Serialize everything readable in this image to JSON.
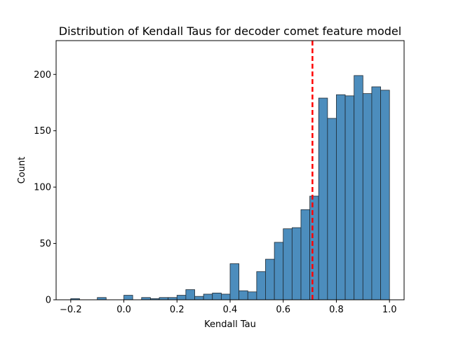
{
  "chart_data": {
    "type": "bar",
    "title": "Distribution of Kendall Taus for decoder comet feature model",
    "xlabel": "Kendall Tau",
    "ylabel": "Count",
    "xlim": [
      -0.255,
      1.055
    ],
    "ylim": [
      0,
      230
    ],
    "grid": false,
    "legend": "none",
    "bar_color": "#4c8dbd",
    "bar_edge_color": "#1f2a33",
    "reference_line": {
      "x": 0.71,
      "color": "#ff0000",
      "style": "dashed"
    },
    "x_ticks": [
      "−0.2",
      "0.0",
      "0.2",
      "0.4",
      "0.6",
      "0.8",
      "1.0"
    ],
    "x_tick_values": [
      -0.2,
      0.0,
      0.2,
      0.4,
      0.6,
      0.8,
      1.0
    ],
    "y_ticks": [
      "0",
      "50",
      "100",
      "150",
      "200"
    ],
    "y_tick_values": [
      0,
      50,
      100,
      150,
      200
    ],
    "bins": [
      {
        "x0": -0.2,
        "x1": -0.1667,
        "count": 1
      },
      {
        "x0": -0.1667,
        "x1": -0.1333,
        "count": 0
      },
      {
        "x0": -0.1333,
        "x1": -0.1,
        "count": 0
      },
      {
        "x0": -0.1,
        "x1": -0.0667,
        "count": 2
      },
      {
        "x0": -0.0667,
        "x1": -0.0333,
        "count": 0
      },
      {
        "x0": -0.0333,
        "x1": 0.0,
        "count": 0
      },
      {
        "x0": 0.0,
        "x1": 0.0333,
        "count": 4
      },
      {
        "x0": 0.0333,
        "x1": 0.0667,
        "count": 0
      },
      {
        "x0": 0.0667,
        "x1": 0.1,
        "count": 2
      },
      {
        "x0": 0.1,
        "x1": 0.1333,
        "count": 1
      },
      {
        "x0": 0.1333,
        "x1": 0.1667,
        "count": 2
      },
      {
        "x0": 0.1667,
        "x1": 0.2,
        "count": 2
      },
      {
        "x0": 0.2,
        "x1": 0.2333,
        "count": 4
      },
      {
        "x0": 0.2333,
        "x1": 0.2667,
        "count": 9
      },
      {
        "x0": 0.2667,
        "x1": 0.3,
        "count": 3
      },
      {
        "x0": 0.3,
        "x1": 0.3333,
        "count": 5
      },
      {
        "x0": 0.3333,
        "x1": 0.3667,
        "count": 6
      },
      {
        "x0": 0.3667,
        "x1": 0.4,
        "count": 5
      },
      {
        "x0": 0.4,
        "x1": 0.4333,
        "count": 32
      },
      {
        "x0": 0.4333,
        "x1": 0.4667,
        "count": 8
      },
      {
        "x0": 0.4667,
        "x1": 0.5,
        "count": 7
      },
      {
        "x0": 0.5,
        "x1": 0.5333,
        "count": 25
      },
      {
        "x0": 0.5333,
        "x1": 0.5667,
        "count": 36
      },
      {
        "x0": 0.5667,
        "x1": 0.6,
        "count": 51
      },
      {
        "x0": 0.6,
        "x1": 0.6333,
        "count": 63
      },
      {
        "x0": 0.6333,
        "x1": 0.6667,
        "count": 64
      },
      {
        "x0": 0.6667,
        "x1": 0.7,
        "count": 80
      },
      {
        "x0": 0.7,
        "x1": 0.7333,
        "count": 92
      },
      {
        "x0": 0.7333,
        "x1": 0.7667,
        "count": 179
      },
      {
        "x0": 0.7667,
        "x1": 0.8,
        "count": 161
      },
      {
        "x0": 0.8,
        "x1": 0.8333,
        "count": 182
      },
      {
        "x0": 0.8333,
        "x1": 0.8667,
        "count": 181
      },
      {
        "x0": 0.8667,
        "x1": 0.9,
        "count": 199
      },
      {
        "x0": 0.9,
        "x1": 0.9333,
        "count": 183
      },
      {
        "x0": 0.9333,
        "x1": 0.9667,
        "count": 189
      },
      {
        "x0": 0.9667,
        "x1": 1.0,
        "count": 186
      }
    ]
  }
}
